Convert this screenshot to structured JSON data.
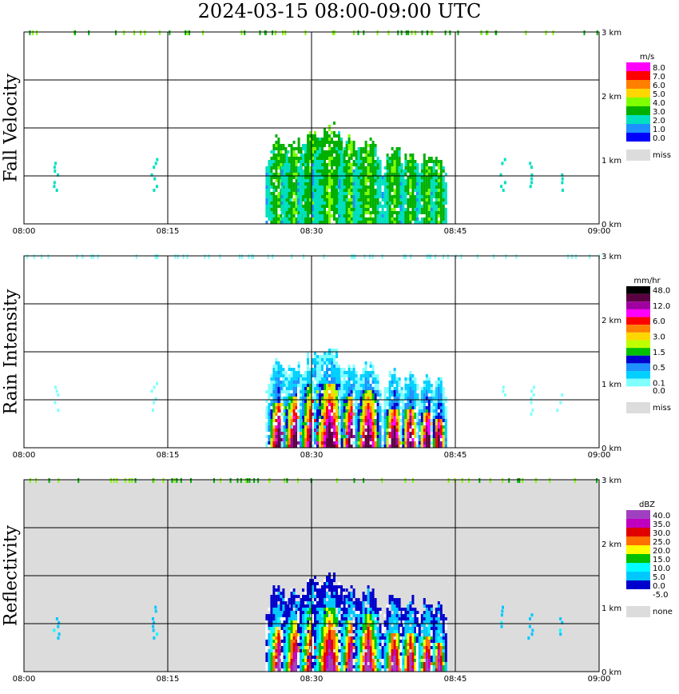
{
  "title": "2024-03-15   08:00-09:00 UTC",
  "chart_data": [
    {
      "type": "heatmap",
      "panel_title": "Fall Velocity",
      "x_ticks": [
        "08:00",
        "08:15",
        "08:30",
        "08:45",
        "09:00"
      ],
      "y_ticks": [
        "0 km",
        "1 km",
        "2 km",
        "3 km"
      ],
      "ylim": [
        0,
        3
      ],
      "background": "#ffffff",
      "legend": {
        "unit": "m/s",
        "entries": [
          {
            "label": "8.0",
            "color": "#ff00ff"
          },
          {
            "label": "7.0",
            "color": "#ff0000"
          },
          {
            "label": "6.0",
            "color": "#ff7f00"
          },
          {
            "label": "5.0",
            "color": "#ffd700"
          },
          {
            "label": "4.0",
            "color": "#7fff00"
          },
          {
            "label": "3.0",
            "color": "#00b000"
          },
          {
            "label": "2.0",
            "color": "#00e0c0"
          },
          {
            "label": "1.0",
            "color": "#1e90ff"
          },
          {
            "label": "0.0",
            "color": "#0000ff"
          }
        ],
        "miss_label": "miss",
        "miss_color": "#dcdcdc"
      }
    },
    {
      "type": "heatmap",
      "panel_title": "Rain Intensity",
      "x_ticks": [
        "08:00",
        "08:15",
        "08:30",
        "08:45",
        "09:00"
      ],
      "y_ticks": [
        "0 km",
        "1 km",
        "2 km",
        "3 km"
      ],
      "ylim": [
        0,
        3
      ],
      "background": "#ffffff",
      "legend": {
        "unit": "mm/hr",
        "entries": [
          {
            "label": "48.0",
            "color": "#000000"
          },
          {
            "label": "",
            "color": "#5a0040"
          },
          {
            "label": "12.0",
            "color": "#a000a0"
          },
          {
            "label": "",
            "color": "#ff00ff"
          },
          {
            "label": "6.0",
            "color": "#ff0000"
          },
          {
            "label": "",
            "color": "#ff7f00"
          },
          {
            "label": "3.0",
            "color": "#ffd700"
          },
          {
            "label": "",
            "color": "#c0ff00"
          },
          {
            "label": "1.5",
            "color": "#00c000"
          },
          {
            "label": "",
            "color": "#0000cd"
          },
          {
            "label": "0.5",
            "color": "#1e90ff"
          },
          {
            "label": "",
            "color": "#00d0ff"
          },
          {
            "label": "0.1",
            "color": "#80ffff"
          },
          {
            "label": "0.0",
            "color": "#ffffff"
          }
        ],
        "miss_label": "miss",
        "miss_color": "#dcdcdc"
      }
    },
    {
      "type": "heatmap",
      "panel_title": "Reflectivity",
      "x_ticks": [
        "08:00",
        "08:15",
        "08:30",
        "08:45",
        "09:00"
      ],
      "y_ticks": [
        "0 km",
        "1 km",
        "2 km",
        "3 km"
      ],
      "ylim": [
        0,
        3
      ],
      "background": "#dcdcdc",
      "legend": {
        "unit": "dBZ",
        "entries": [
          {
            "label": "40.0",
            "color": "#a040c0"
          },
          {
            "label": "35.0",
            "color": "#c000c0"
          },
          {
            "label": "30.0",
            "color": "#e00000"
          },
          {
            "label": "25.0",
            "color": "#ff7000"
          },
          {
            "label": "20.0",
            "color": "#ffff00"
          },
          {
            "label": "15.0",
            "color": "#00c000"
          },
          {
            "label": "10.0",
            "color": "#00ffff"
          },
          {
            "label": "5.0",
            "color": "#00c8ff"
          },
          {
            "label": "0.0",
            "color": "#0000cd"
          },
          {
            "label": "-5.0",
            "color": "#ffffff"
          }
        ],
        "miss_label": "none",
        "miss_color": "#dcdcdc"
      }
    }
  ]
}
